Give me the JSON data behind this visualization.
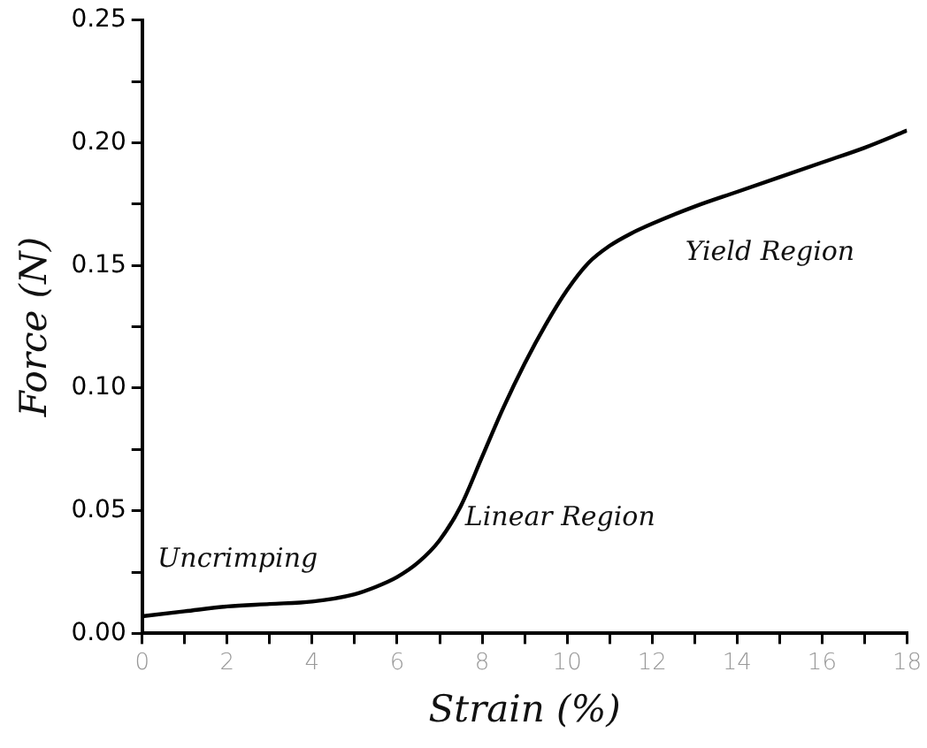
{
  "chart_data": {
    "type": "line",
    "xlabel": "Strain (%)",
    "ylabel": "Force (N)",
    "x": [
      0,
      1,
      2,
      3,
      4,
      5,
      5.5,
      6,
      6.5,
      7,
      7.5,
      8,
      8.5,
      9,
      9.5,
      10,
      10.5,
      11,
      11.5,
      12,
      13,
      14,
      15,
      16,
      17,
      18
    ],
    "series": [
      {
        "color": "#000000",
        "values": [
          0.007,
          0.009,
          0.011,
          0.012,
          0.013,
          0.016,
          0.019,
          0.023,
          0.029,
          0.038,
          0.052,
          0.072,
          0.092,
          0.11,
          0.126,
          0.14,
          0.151,
          0.158,
          0.163,
          0.167,
          0.174,
          0.18,
          0.186,
          0.192,
          0.198,
          0.205
        ]
      }
    ],
    "xlim": [
      0,
      18
    ],
    "ylim": [
      0,
      0.25
    ],
    "xticks": [
      0,
      {
        "value": 1,
        "label": null
      },
      2,
      {
        "value": 3,
        "label": null
      },
      4,
      {
        "value": 5,
        "label": null
      },
      6,
      {
        "value": 7,
        "label": null
      },
      8,
      {
        "value": 9,
        "label": null
      },
      10,
      {
        "value": 11,
        "label": null
      },
      12,
      {
        "value": 13,
        "label": null
      },
      14,
      {
        "value": 15,
        "label": null
      },
      16,
      {
        "value": 17,
        "label": null
      },
      18
    ],
    "yticks": [
      {
        "value": 0,
        "label": "0.00"
      },
      {
        "value": 0.025,
        "label": null
      },
      {
        "value": 0.05,
        "label": "0.05"
      },
      {
        "value": 0.075,
        "label": null
      },
      {
        "value": 0.1,
        "label": "0.10"
      },
      {
        "value": 0.125,
        "label": null
      },
      {
        "value": 0.15,
        "label": "0.15"
      },
      {
        "value": 0.175,
        "label": null
      },
      {
        "value": 0.2,
        "label": "0.20"
      },
      {
        "value": 0.225,
        "label": null
      },
      {
        "value": 0.25,
        "label": "0.25"
      }
    ],
    "annotations": [
      "Uncrimping",
      {
        "text": "Linear Region",
        "x": 7.6,
        "y": 0.047
      },
      "Yield Region"
    ],
    "grid": false,
    "legend": false,
    "marker": "none",
    "line_style": "solid"
  }
}
